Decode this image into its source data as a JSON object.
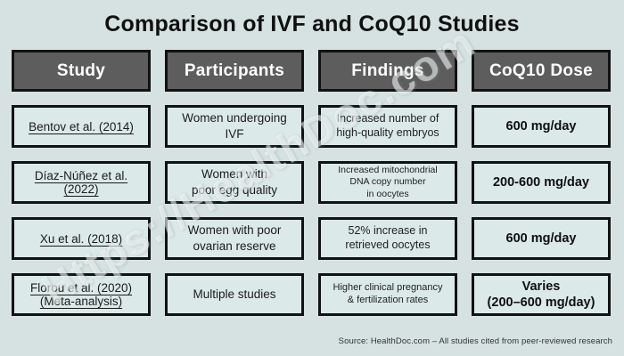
{
  "title": "Comparison of IVF and CoQ10 Studies",
  "watermark": "Https://HealthDoc.com",
  "footer": {
    "source": "Source: HealthDoc.com – All studies cited from peer-reviewed research"
  },
  "colors": {
    "page_bg": "#d5e2e1",
    "cell_bg": "#dbe9e8",
    "header_bg": "#5d5d5d",
    "border": "#121212",
    "header_text": "#ffffff",
    "title_text": "#101010"
  },
  "table": {
    "headers": [
      "Study",
      "Participants",
      "Findings",
      "CoQ10 Dose"
    ],
    "rows": [
      {
        "study": "Bentov et al. (2014)",
        "participants": "Women undergoing\nIVF",
        "findings": "Increased number of\nhigh-quality embryos",
        "dose": "600 mg/day"
      },
      {
        "study": "Díaz-Núñez et al.\n(2022)",
        "participants": "Women with\npoor egg quality",
        "findings": "Increased mitochondrial\nDNA copy number\nin oocytes",
        "dose": "200-600 mg/day"
      },
      {
        "study": "Xu et al. (2018)",
        "participants": "Women with poor\novarian reserve",
        "findings": "52% increase in\nretrieved oocytes",
        "dose": "600 mg/day"
      },
      {
        "study": "Florou et al. (2020)\n(Meta-analysis)",
        "participants": "Multiple studies",
        "findings": "Higher clinical pregnancy\n& fertilization rates",
        "dose": "Varies\n(200–600 mg/day)"
      }
    ]
  },
  "chart_data": {
    "type": "table",
    "title": "Comparison of IVF and CoQ10 Studies",
    "columns": [
      "Study",
      "Participants",
      "Findings",
      "CoQ10 Dose"
    ],
    "rows": [
      [
        "Bentov et al. (2014)",
        "Women undergoing IVF",
        "Increased number of high-quality embryos",
        "600 mg/day"
      ],
      [
        "Díaz-Núñez et al. (2022)",
        "Women with poor egg quality",
        "Increased mitochondrial DNA copy number in oocytes",
        "200-600 mg/day"
      ],
      [
        "Xu et al. (2018)",
        "Women with poor ovarian reserve",
        "52% increase in retrieved oocytes",
        "600 mg/day"
      ],
      [
        "Florou et al. (2020) (Meta-analysis)",
        "Multiple studies",
        "Higher clinical pregnancy & fertilization rates",
        "Varies (200–600 mg/day)"
      ]
    ],
    "source": "Source: HealthDoc.com – All studies cited from peer-reviewed research"
  }
}
